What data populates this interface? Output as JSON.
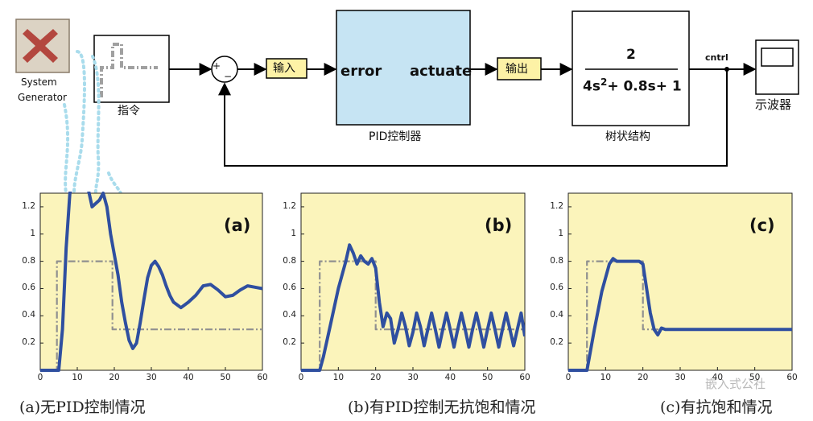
{
  "diagram": {
    "system_generator": {
      "line1": "System",
      "line2": "Generator"
    },
    "command_block_label": "指令",
    "sum_sign_plus": "+",
    "sum_sign_minus": "−",
    "input_tag": "输入",
    "pid_block": {
      "in_port": "error",
      "out_port": "actuate",
      "label": "PID控制器"
    },
    "output_tag": "输出",
    "plant": {
      "numerator": "2",
      "denominator": "4s2+ 0.8s+ 1",
      "label": "树状结构"
    },
    "signal_name": "cntrl",
    "scope_label": "示波器"
  },
  "chart_data": [
    {
      "type": "line",
      "tag": "(a)",
      "caption": "(a)无PID控制情况",
      "xlim": [
        0,
        60
      ],
      "ylim": [
        0,
        1.3
      ],
      "xticks": [
        "0",
        "10",
        "20",
        "30",
        "40",
        "50",
        "60"
      ],
      "yticks": [
        "0.2",
        "0.4",
        "0.6",
        "0.8",
        "1",
        "1.2"
      ],
      "series": [
        {
          "role": "command",
          "x": [
            0,
            4.5,
            4.5,
            19.5,
            19.5,
            60
          ],
          "y": [
            0,
            0,
            0.8,
            0.8,
            0.3,
            0.3
          ]
        },
        {
          "role": "response",
          "x": [
            0,
            5,
            6,
            7,
            8,
            10,
            12,
            14,
            16,
            17,
            18,
            19,
            20,
            21,
            22,
            23,
            24,
            25,
            26,
            27,
            28,
            29,
            30,
            31,
            32,
            33,
            34,
            35,
            36,
            38,
            40,
            42,
            44,
            46,
            48,
            50,
            52,
            54,
            56,
            58,
            60
          ],
          "y": [
            0,
            0,
            0.3,
            0.9,
            1.3,
            1.5,
            1.45,
            1.2,
            1.25,
            1.3,
            1.2,
            1.0,
            0.85,
            0.7,
            0.5,
            0.35,
            0.22,
            0.16,
            0.2,
            0.35,
            0.52,
            0.68,
            0.77,
            0.8,
            0.76,
            0.7,
            0.62,
            0.55,
            0.5,
            0.46,
            0.5,
            0.55,
            0.62,
            0.63,
            0.59,
            0.54,
            0.55,
            0.59,
            0.62,
            0.61,
            0.6
          ]
        }
      ]
    },
    {
      "type": "line",
      "tag": "(b)",
      "caption": "(b)有PID控制无抗饱和情况",
      "xlim": [
        0,
        60
      ],
      "ylim": [
        0,
        1.3
      ],
      "xticks": [
        "0",
        "10",
        "20",
        "30",
        "40",
        "50",
        "60"
      ],
      "yticks": [
        "0.2",
        "0.4",
        "0.6",
        "0.8",
        "1",
        "1.2"
      ],
      "series": [
        {
          "role": "command",
          "x": [
            0,
            5,
            5,
            20,
            20,
            60
          ],
          "y": [
            0,
            0,
            0.8,
            0.8,
            0.3,
            0.3
          ]
        },
        {
          "role": "response",
          "x": [
            0,
            5,
            6,
            8,
            10,
            12,
            13,
            14,
            15,
            16,
            17,
            18,
            19,
            20,
            21,
            22,
            23,
            24,
            25,
            26,
            27,
            28,
            29,
            30,
            31,
            32,
            33,
            34,
            35,
            36,
            37,
            38,
            39,
            40,
            41,
            42,
            43,
            44,
            45,
            46,
            47,
            48,
            49,
            50,
            51,
            52,
            53,
            54,
            55,
            56,
            57,
            58,
            59,
            60
          ],
          "y": [
            0,
            0,
            0.1,
            0.35,
            0.6,
            0.8,
            0.92,
            0.86,
            0.78,
            0.84,
            0.8,
            0.78,
            0.82,
            0.75,
            0.5,
            0.32,
            0.42,
            0.38,
            0.2,
            0.3,
            0.42,
            0.32,
            0.18,
            0.28,
            0.42,
            0.32,
            0.18,
            0.3,
            0.42,
            0.3,
            0.17,
            0.3,
            0.42,
            0.3,
            0.17,
            0.3,
            0.42,
            0.3,
            0.17,
            0.3,
            0.42,
            0.3,
            0.17,
            0.3,
            0.42,
            0.3,
            0.17,
            0.3,
            0.42,
            0.3,
            0.18,
            0.3,
            0.42,
            0.25
          ]
        }
      ]
    },
    {
      "type": "line",
      "tag": "(c)",
      "caption": "(c)有抗饱和情况",
      "xlim": [
        0,
        60
      ],
      "ylim": [
        0,
        1.3
      ],
      "xticks": [
        "0",
        "10",
        "20",
        "30",
        "40",
        "50",
        "60"
      ],
      "yticks": [
        "0.2",
        "0.4",
        "0.6",
        "0.8",
        "1",
        "1.2"
      ],
      "series": [
        {
          "role": "command",
          "x": [
            0,
            5,
            5,
            20,
            20,
            60
          ],
          "y": [
            0,
            0,
            0.8,
            0.8,
            0.3,
            0.3
          ]
        },
        {
          "role": "response",
          "x": [
            0,
            5,
            7,
            9,
            11,
            12,
            13,
            15,
            17,
            19,
            20,
            21,
            22,
            23,
            24,
            25,
            26,
            30,
            40,
            50,
            60
          ],
          "y": [
            0,
            0,
            0.3,
            0.58,
            0.78,
            0.82,
            0.8,
            0.8,
            0.8,
            0.8,
            0.78,
            0.6,
            0.42,
            0.3,
            0.26,
            0.31,
            0.3,
            0.3,
            0.3,
            0.3,
            0.3
          ]
        }
      ]
    }
  ],
  "watermark": {
    "line1": "嵌入式公社"
  },
  "colors": {
    "plot_bg": "#fbf4bb",
    "pid_fill": "#c6e4f3",
    "tag_fill": "#fdf2a6",
    "response_line": "#2f4fa0",
    "command_line": "#909090",
    "leader_dots": "#a9dcec",
    "logo_red": "#b3473f"
  }
}
